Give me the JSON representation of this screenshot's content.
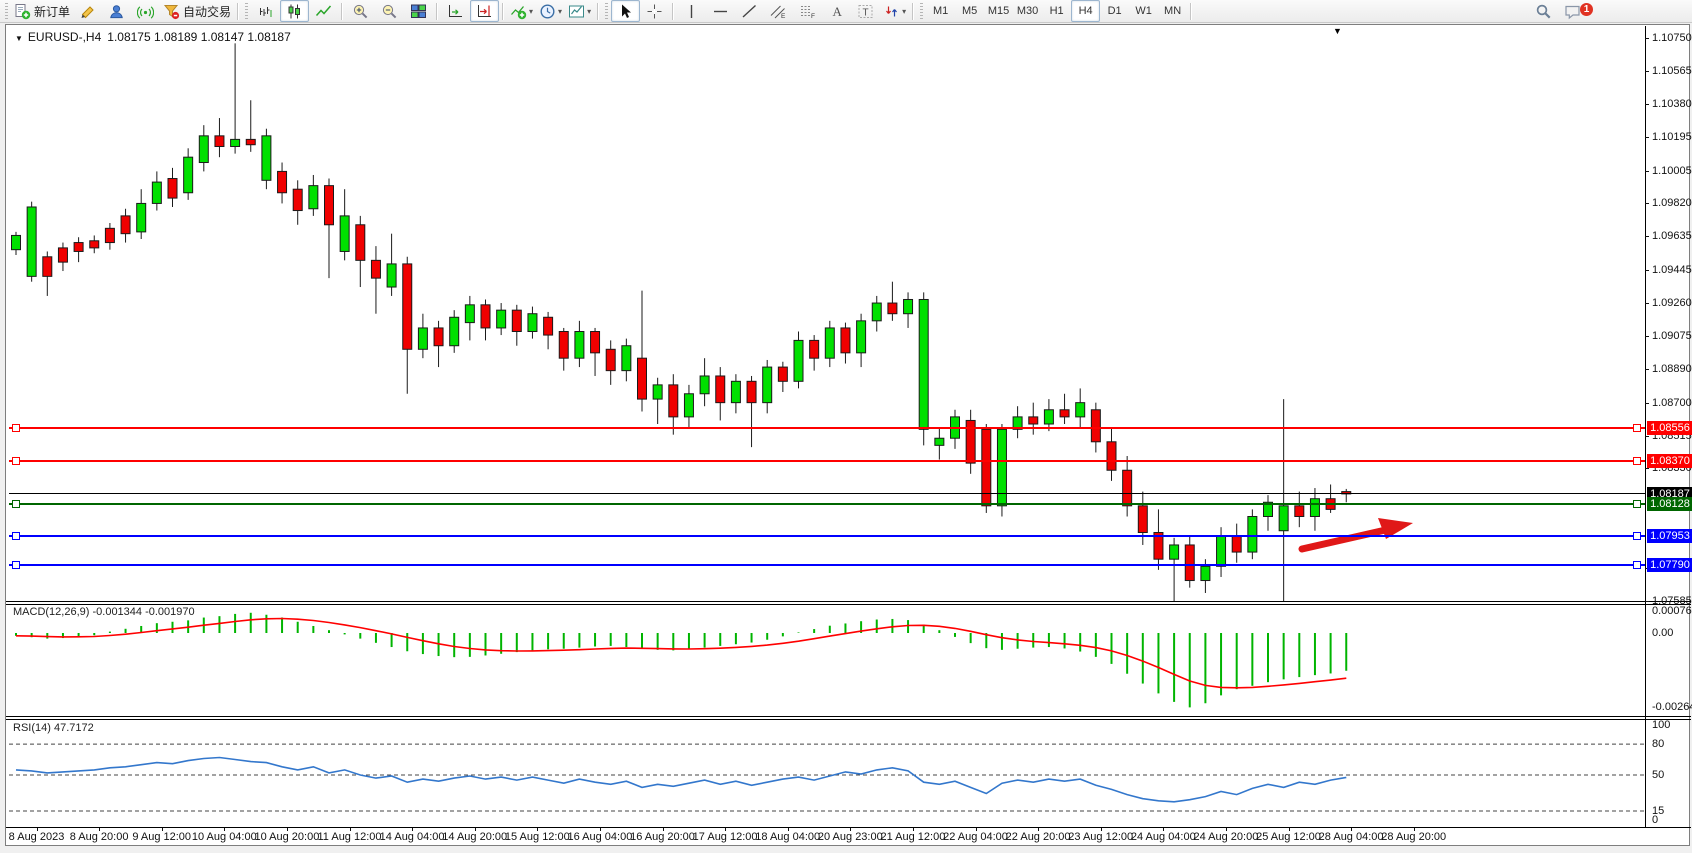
{
  "toolbar": {
    "groups": [
      {
        "items": [
          {
            "icon": "new-order-icon",
            "label": "新订单"
          },
          {
            "icon": "metaeditor-pencil-icon"
          },
          {
            "icon": "profile-icon"
          },
          {
            "icon": "signals-icon"
          },
          {
            "icon": "auto-trading-icon",
            "label": "自动交易"
          }
        ]
      },
      {
        "items": [
          {
            "icon": "bar-chart-icon"
          },
          {
            "icon": "candlestick-chart-icon",
            "pressed": true
          },
          {
            "icon": "line-chart-icon"
          },
          {
            "sep": true
          },
          {
            "icon": "zoom-in-icon"
          },
          {
            "icon": "zoom-out-icon"
          },
          {
            "icon": "tile-windows-icon"
          },
          {
            "sep": true
          },
          {
            "icon": "auto-scroll-icon"
          },
          {
            "icon": "chart-shift-icon",
            "pressed": true
          },
          {
            "sep": true
          },
          {
            "icon": "indicators-icon",
            "caret": true
          },
          {
            "icon": "periods-icon",
            "caret": true
          },
          {
            "icon": "templates-icon",
            "caret": true
          }
        ]
      },
      {
        "items": [
          {
            "icon": "cursor-icon",
            "pressed": true
          },
          {
            "icon": "crosshair-icon"
          },
          {
            "sep": true
          },
          {
            "icon": "vertical-line-icon"
          },
          {
            "icon": "horizontal-line-icon"
          },
          {
            "icon": "trendline-icon"
          },
          {
            "icon": "equidistant-channel-icon"
          },
          {
            "icon": "fibonacci-icon"
          },
          {
            "icon": "text-icon"
          },
          {
            "icon": "text-label-icon"
          },
          {
            "icon": "arrows-icon",
            "caret": true
          }
        ]
      },
      {
        "items": [
          {
            "tf": "M1"
          },
          {
            "tf": "M5"
          },
          {
            "tf": "M15"
          },
          {
            "tf": "M30"
          },
          {
            "tf": "H1"
          },
          {
            "tf": "H4",
            "pressed": true
          },
          {
            "tf": "D1"
          },
          {
            "tf": "W1"
          },
          {
            "tf": "MN"
          }
        ]
      }
    ],
    "active_timeframe": "H4",
    "right_icons": [
      {
        "icon": "search-icon"
      },
      {
        "icon": "chat-icon",
        "badge": "1"
      }
    ]
  },
  "chart": {
    "title": {
      "symbol_period": "EURUSD-,H4",
      "ohlc_text": "1.08175 1.08189 1.08147 1.08187"
    },
    "annotation_arrow": {
      "type": "arrow",
      "color": "#E01818",
      "direction": "up-right"
    }
  },
  "chart_data": [
    {
      "type": "candlestick",
      "title": "EURUSD-,H4",
      "ohlc_display": {
        "open": "1.08175",
        "high": "1.08189",
        "low": "1.08147",
        "close": "1.08187"
      },
      "y_axis_ticks": [
        "1.10750",
        "1.10565",
        "1.10380",
        "1.10195",
        "1.10005",
        "1.09820",
        "1.09635",
        "1.09445",
        "1.09260",
        "1.09075",
        "1.08890",
        "1.08700",
        "1.08515",
        "1.08330",
        "1.07770",
        "1.07585"
      ],
      "x_labels": [
        "8 Aug 2023",
        "8 Aug 20:00",
        "9 Aug 12:00",
        "10 Aug 04:00",
        "10 Aug 20:00",
        "11 Aug 12:00",
        "14 Aug 04:00",
        "14 Aug 20:00",
        "15 Aug 12:00",
        "16 Aug 04:00",
        "16 Aug 20:00",
        "17 Aug 12:00",
        "18 Aug 04:00",
        "20 Aug 23:00",
        "21 Aug 12:00",
        "22 Aug 04:00",
        "22 Aug 20:00",
        "23 Aug 12:00",
        "24 Aug 04:00",
        "24 Aug 20:00",
        "25 Aug 12:00",
        "28 Aug 04:00",
        "28 Aug 20:00"
      ],
      "horizontal_lines": [
        {
          "price": 1.08556,
          "label": "1.08556",
          "color": "#FF0000",
          "handles": true
        },
        {
          "price": 1.0837,
          "label": "1.08370",
          "color": "#FF0000",
          "handles": true
        },
        {
          "price": 1.08187,
          "label": "1.08187",
          "color": "#000000",
          "handles": false
        },
        {
          "price": 1.08128,
          "label": "1.08128",
          "color": "#006600",
          "handles": true
        },
        {
          "price": 1.07953,
          "label": "1.07953",
          "color": "#0000FF",
          "handles": true
        },
        {
          "price": 1.0779,
          "label": "1.07790",
          "color": "#0000FF",
          "handles": true
        }
      ],
      "colors": {
        "bull": "#00E000",
        "bear": "#F00000",
        "outline": "#1a1a1a"
      },
      "candles": [
        [
          1.0956,
          1.0966,
          1.0953,
          1.0964
        ],
        [
          1.0941,
          1.0983,
          1.0938,
          1.098
        ],
        [
          1.0952,
          1.0955,
          1.093,
          1.0941
        ],
        [
          1.0957,
          1.096,
          1.0944,
          1.0949
        ],
        [
          1.096,
          1.0963,
          1.0949,
          1.0955
        ],
        [
          1.0961,
          1.0964,
          1.0954,
          1.0957
        ],
        [
          1.0968,
          1.0971,
          1.0956,
          1.096
        ],
        [
          1.0975,
          1.0979,
          1.096,
          1.0965
        ],
        [
          1.0966,
          1.099,
          1.0962,
          1.0982
        ],
        [
          1.0982,
          1.1,
          1.0978,
          1.0994
        ],
        [
          1.0996,
          1.1002,
          1.098,
          1.0985
        ],
        [
          1.0988,
          1.1013,
          1.0984,
          1.1008
        ],
        [
          1.1005,
          1.1026,
          1.1,
          1.102
        ],
        [
          1.102,
          1.103,
          1.1008,
          1.1014
        ],
        [
          1.1014,
          1.1072,
          1.101,
          1.1018
        ],
        [
          1.1018,
          1.104,
          1.1011,
          1.1015
        ],
        [
          1.0995,
          1.1024,
          1.099,
          1.102
        ],
        [
          1.1,
          1.1005,
          1.0982,
          1.0988
        ],
        [
          1.099,
          1.0995,
          1.097,
          1.0978
        ],
        [
          1.0979,
          1.0998,
          1.0975,
          1.0992
        ],
        [
          1.0992,
          1.0996,
          1.094,
          1.097
        ],
        [
          1.0955,
          1.099,
          1.095,
          1.0975
        ],
        [
          1.097,
          1.0975,
          1.0935,
          1.095
        ],
        [
          1.095,
          1.0958,
          1.092,
          1.094
        ],
        [
          1.0935,
          1.0965,
          1.093,
          1.0948
        ],
        [
          1.0948,
          1.0952,
          1.0875,
          1.09
        ],
        [
          1.09,
          1.092,
          1.0895,
          1.0912
        ],
        [
          1.0912,
          1.0916,
          1.089,
          1.0902
        ],
        [
          1.0902,
          1.0922,
          1.0898,
          1.0918
        ],
        [
          1.0915,
          1.093,
          1.0905,
          1.0925
        ],
        [
          1.0925,
          1.0928,
          1.0905,
          1.0912
        ],
        [
          1.0912,
          1.0926,
          1.0908,
          1.0922
        ],
        [
          1.0922,
          1.0925,
          1.0902,
          1.091
        ],
        [
          1.091,
          1.0924,
          1.0906,
          1.092
        ],
        [
          1.0918,
          1.0921,
          1.09,
          1.0908
        ],
        [
          1.091,
          1.0912,
          1.0888,
          1.0895
        ],
        [
          1.0895,
          1.0916,
          1.089,
          1.091
        ],
        [
          1.091,
          1.0912,
          1.0885,
          1.0898
        ],
        [
          1.09,
          1.0905,
          1.088,
          1.0888
        ],
        [
          1.0888,
          1.0906,
          1.0882,
          1.0902
        ],
        [
          1.0895,
          1.0933,
          1.0865,
          1.0872
        ],
        [
          1.0872,
          1.0884,
          1.0858,
          1.088
        ],
        [
          1.088,
          1.0886,
          1.0852,
          1.0862
        ],
        [
          1.0862,
          1.088,
          1.0856,
          1.0875
        ],
        [
          1.0875,
          1.0895,
          1.0868,
          1.0885
        ],
        [
          1.0885,
          1.089,
          1.086,
          1.087
        ],
        [
          1.087,
          1.0886,
          1.0864,
          1.0882
        ],
        [
          1.0882,
          1.0885,
          1.0845,
          1.087
        ],
        [
          1.087,
          1.0894,
          1.0864,
          1.089
        ],
        [
          1.089,
          1.0893,
          1.0876,
          1.0882
        ],
        [
          1.0882,
          1.091,
          1.0878,
          1.0905
        ],
        [
          1.0905,
          1.0908,
          1.0888,
          1.0895
        ],
        [
          1.0895,
          1.0916,
          1.089,
          1.0912
        ],
        [
          1.0912,
          1.0915,
          1.0892,
          1.0898
        ],
        [
          1.0898,
          1.092,
          1.089,
          1.0916
        ],
        [
          1.0916,
          1.093,
          1.091,
          1.0926
        ],
        [
          1.0926,
          1.0938,
          1.0916,
          1.092
        ],
        [
          1.092,
          1.0932,
          1.0912,
          1.0928
        ],
        [
          1.0855,
          1.0932,
          1.0846,
          1.0928
        ],
        [
          1.0846,
          1.0856,
          1.0838,
          1.085
        ],
        [
          1.085,
          1.0866,
          1.0844,
          1.0862
        ],
        [
          1.086,
          1.0866,
          1.083,
          1.0836
        ],
        [
          1.0855,
          1.0858,
          1.0808,
          1.0812
        ],
        [
          1.0812,
          1.0858,
          1.0806,
          1.0855
        ],
        [
          1.0855,
          1.0868,
          1.085,
          1.0862
        ],
        [
          1.0862,
          1.087,
          1.0852,
          1.0858
        ],
        [
          1.0858,
          1.0872,
          1.0854,
          1.0866
        ],
        [
          1.0866,
          1.0875,
          1.0858,
          1.0862
        ],
        [
          1.0862,
          1.0878,
          1.0856,
          1.087
        ],
        [
          1.0866,
          1.087,
          1.0842,
          1.0848
        ],
        [
          1.0848,
          1.0856,
          1.0826,
          1.0832
        ],
        [
          1.0832,
          1.084,
          1.0806,
          1.0812
        ],
        [
          1.0812,
          1.082,
          1.079,
          1.0797
        ],
        [
          1.0797,
          1.081,
          1.0776,
          1.0782
        ],
        [
          1.0782,
          1.0794,
          1.0757,
          1.079
        ],
        [
          1.079,
          1.0795,
          1.0766,
          1.077
        ],
        [
          1.077,
          1.0782,
          1.0763,
          1.0778
        ],
        [
          1.0778,
          1.08,
          1.0772,
          1.0795
        ],
        [
          1.0795,
          1.0802,
          1.078,
          1.0786
        ],
        [
          1.0786,
          1.081,
          1.0782,
          1.0806
        ],
        [
          1.0806,
          1.0818,
          1.0798,
          1.0814
        ],
        [
          1.0798,
          1.0872,
          1.0757,
          1.0812
        ],
        [
          1.0812,
          1.082,
          1.08,
          1.0806
        ],
        [
          1.0806,
          1.0822,
          1.0798,
          1.0816
        ],
        [
          1.0816,
          1.0824,
          1.0808,
          1.081
        ],
        [
          1.082,
          1.08215,
          1.0814,
          1.08187
        ]
      ]
    },
    {
      "type": "bar",
      "name": "MACD(12,26,9)",
      "values_display": "-0.001344 -0.001970",
      "axis_labels": [
        "0.000769",
        "0.00",
        "-0.002648"
      ],
      "colors": {
        "histogram": "#00B400",
        "signal": "#FF0000"
      },
      "histogram": [
        -0.0001,
        -0.00015,
        -0.0002,
        -0.00018,
        -0.00012,
        -8e-05,
        5e-05,
        0.00015,
        0.00025,
        0.00035,
        0.0004,
        0.00045,
        0.00055,
        0.0006,
        0.00068,
        0.00072,
        0.00065,
        0.00055,
        0.0004,
        0.00025,
        0.0001,
        -5e-05,
        -0.0002,
        -0.00035,
        -0.0005,
        -0.00065,
        -0.00075,
        -0.00082,
        -0.00086,
        -0.00085,
        -0.0008,
        -0.00074,
        -0.00068,
        -0.00062,
        -0.00058,
        -0.00056,
        -0.00052,
        -0.00048,
        -0.00046,
        -0.0005,
        -0.00056,
        -0.0006,
        -0.00062,
        -0.00058,
        -0.00052,
        -0.00046,
        -0.0004,
        -0.00034,
        -0.00024,
        -0.00012,
        2e-05,
        0.00014,
        0.00026,
        0.00034,
        0.00042,
        0.00048,
        0.0005,
        0.00046,
        0.0003,
        0.0001,
        -0.00014,
        -0.00036,
        -0.00054,
        -0.0006,
        -0.00056,
        -0.00052,
        -0.0005,
        -0.00055,
        -0.00066,
        -0.00085,
        -0.0011,
        -0.00145,
        -0.0018,
        -0.00215,
        -0.00245,
        -0.002648,
        -0.0025,
        -0.00222,
        -0.002,
        -0.00188,
        -0.00175,
        -0.00165,
        -0.00157,
        -0.0015,
        -0.00144,
        -0.001344
      ]
    },
    {
      "type": "line",
      "name": "RSI(14)",
      "value_display": "47.7172",
      "axis_labels": [
        "100",
        "80",
        "50",
        "15",
        "0"
      ],
      "levels": [
        80,
        50,
        15
      ],
      "color": "#3377CC",
      "values": [
        55,
        54,
        52,
        53,
        54,
        55,
        57,
        58,
        60,
        62,
        61,
        64,
        66,
        67,
        65,
        63,
        62,
        58,
        55,
        58,
        52,
        55,
        50,
        47,
        49,
        43,
        46,
        44,
        47,
        49,
        46,
        48,
        45,
        48,
        45,
        42,
        46,
        43,
        41,
        44,
        38,
        41,
        39,
        42,
        45,
        41,
        44,
        40,
        43,
        46,
        48,
        45,
        49,
        53,
        51,
        55,
        57,
        54,
        43,
        41,
        44,
        38,
        32,
        42,
        45,
        43,
        46,
        44,
        46,
        40,
        36,
        31,
        27,
        25,
        24,
        26,
        29,
        34,
        31,
        37,
        41,
        38,
        43,
        41,
        45,
        47.7172
      ]
    }
  ]
}
